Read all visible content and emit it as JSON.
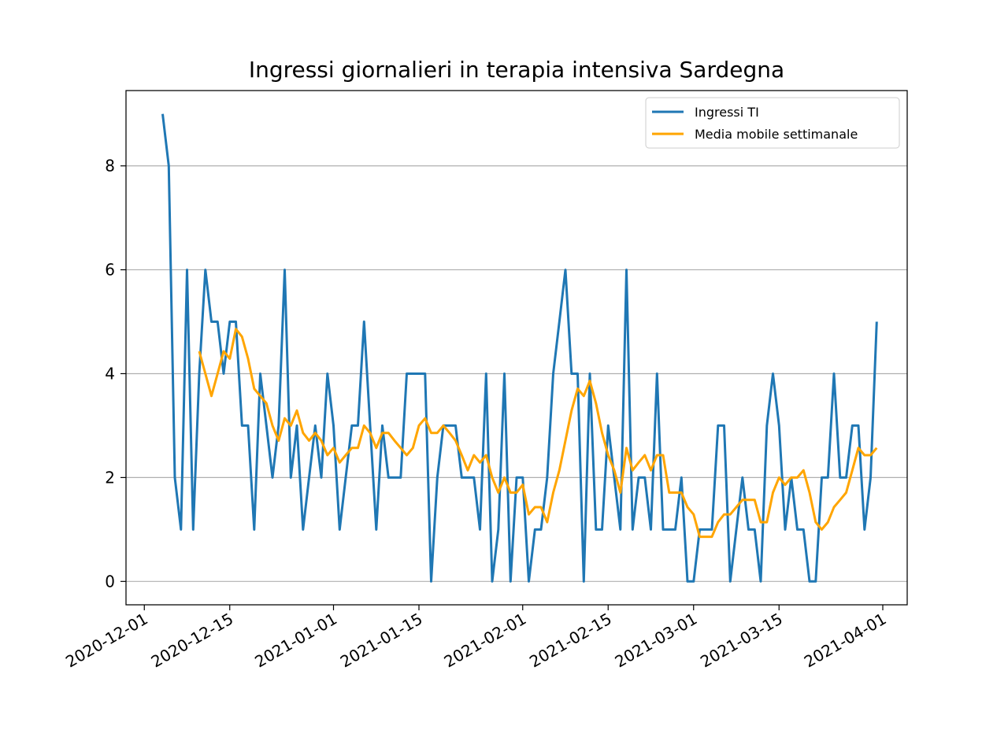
{
  "chart_data": {
    "type": "line",
    "title": "Ingressi giornalieri in terapia intensiva Sardegna",
    "xlabel": "",
    "ylabel": "",
    "x_start": "2020-12-04",
    "xlim": [
      "2020-11-28",
      "2021-04-05"
    ],
    "ylim": [
      -0.45,
      9.45
    ],
    "y_ticks": [
      0,
      2,
      4,
      6,
      8
    ],
    "x_ticks": [
      "2020-12-01",
      "2020-12-15",
      "2021-01-01",
      "2021-01-15",
      "2021-02-01",
      "2021-02-15",
      "2021-03-01",
      "2021-03-15",
      "2021-04-01"
    ],
    "grid": "y",
    "legend_position": "top-right",
    "series": [
      {
        "name": "Ingressi TI",
        "color": "#1f77b4",
        "values": [
          9,
          8,
          2,
          1,
          6,
          1,
          4,
          6,
          5,
          5,
          4,
          5,
          5,
          3,
          3,
          1,
          4,
          3,
          2,
          3,
          6,
          2,
          3,
          1,
          2,
          3,
          2,
          4,
          3,
          1,
          2,
          3,
          3,
          5,
          3,
          1,
          3,
          2,
          2,
          2,
          4,
          4,
          4,
          4,
          0,
          2,
          3,
          3,
          3,
          2,
          2,
          2,
          1,
          4,
          0,
          1,
          4,
          0,
          2,
          2,
          0,
          1,
          1,
          2,
          4,
          5,
          6,
          4,
          4,
          0,
          4,
          1,
          1,
          3,
          2,
          1,
          6,
          1,
          2,
          2,
          1,
          4,
          1,
          1,
          1,
          2,
          0,
          0,
          1,
          1,
          1,
          3,
          3,
          0,
          1,
          2,
          1,
          1,
          0,
          3,
          4,
          3,
          1,
          2,
          1,
          1,
          0,
          0,
          2,
          2,
          4,
          2,
          2,
          3,
          3,
          1,
          2,
          5
        ]
      },
      {
        "name": "Media mobile settimanale",
        "color": "#ffa500",
        "start_index": 6,
        "values": [
          4.43,
          4.0,
          3.57,
          4.0,
          4.43,
          4.29,
          4.86,
          4.71,
          4.29,
          3.71,
          3.57,
          3.43,
          3.0,
          2.71,
          3.14,
          3.0,
          3.29,
          2.86,
          2.71,
          2.86,
          2.71,
          2.43,
          2.57,
          2.29,
          2.43,
          2.57,
          2.57,
          3.0,
          2.86,
          2.57,
          2.86,
          2.86,
          2.71,
          2.57,
          2.43,
          2.57,
          3.0,
          3.14,
          2.86,
          2.86,
          3.0,
          2.86,
          2.71,
          2.43,
          2.14,
          2.43,
          2.29,
          2.43,
          2.0,
          1.71,
          2.0,
          1.71,
          1.71,
          1.86,
          1.29,
          1.43,
          1.43,
          1.14,
          1.71,
          2.14,
          2.71,
          3.29,
          3.71,
          3.57,
          3.86,
          3.43,
          2.86,
          2.43,
          2.14,
          1.71,
          2.57,
          2.14,
          2.29,
          2.43,
          2.14,
          2.43,
          2.43,
          1.71,
          1.71,
          1.71,
          1.43,
          1.29,
          0.86,
          0.86,
          0.86,
          1.14,
          1.29,
          1.29,
          1.43,
          1.57,
          1.57,
          1.57,
          1.14,
          1.14,
          1.71,
          2.0,
          1.86,
          2.0,
          2.0,
          2.14,
          1.71,
          1.14,
          1.0,
          1.14,
          1.43,
          1.57,
          1.71,
          2.14,
          2.57,
          2.43,
          2.43,
          2.57
        ]
      }
    ]
  }
}
